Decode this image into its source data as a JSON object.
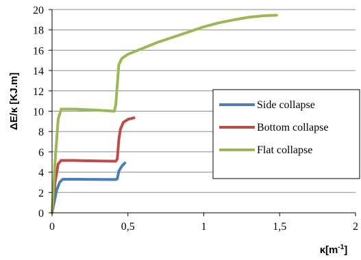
{
  "chart_data": {
    "type": "line",
    "xlabel": "κ[m",
    "xlabel_sup": "-1",
    "xlabel_end": "]",
    "ylabel": "ΔE/κ [KJ.m]",
    "xlim": [
      0,
      2
    ],
    "ylim": [
      0,
      20
    ],
    "x_ticks": [
      "0",
      "0,5",
      "1",
      "1,5",
      "2"
    ],
    "y_ticks": [
      "0",
      "2",
      "4",
      "6",
      "8",
      "10",
      "12",
      "14",
      "16",
      "18",
      "20"
    ],
    "grid": "horizontal",
    "legend_position": "right",
    "series": [
      {
        "name": "Side collapse",
        "color": "#4a7ebb",
        "points": [
          [
            0,
            0
          ],
          [
            0.03,
            2.2
          ],
          [
            0.05,
            3.0
          ],
          [
            0.07,
            3.3
          ],
          [
            0.15,
            3.3
          ],
          [
            0.3,
            3.28
          ],
          [
            0.42,
            3.27
          ],
          [
            0.43,
            3.35
          ],
          [
            0.44,
            4.1
          ],
          [
            0.46,
            4.6
          ],
          [
            0.48,
            4.9
          ]
        ]
      },
      {
        "name": "Bottom collapse",
        "color": "#be4b48",
        "points": [
          [
            0,
            0
          ],
          [
            0.02,
            3.0
          ],
          [
            0.04,
            4.8
          ],
          [
            0.06,
            5.15
          ],
          [
            0.15,
            5.15
          ],
          [
            0.3,
            5.1
          ],
          [
            0.42,
            5.08
          ],
          [
            0.43,
            5.3
          ],
          [
            0.44,
            7.2
          ],
          [
            0.45,
            8.2
          ],
          [
            0.47,
            8.9
          ],
          [
            0.5,
            9.2
          ],
          [
            0.54,
            9.35
          ]
        ]
      },
      {
        "name": "Flat collapse",
        "color": "#98b954",
        "points": [
          [
            0,
            0
          ],
          [
            0.02,
            5.0
          ],
          [
            0.04,
            9.2
          ],
          [
            0.06,
            10.2
          ],
          [
            0.15,
            10.2
          ],
          [
            0.3,
            10.1
          ],
          [
            0.41,
            10.0
          ],
          [
            0.42,
            10.6
          ],
          [
            0.44,
            14.6
          ],
          [
            0.46,
            15.2
          ],
          [
            0.5,
            15.6
          ],
          [
            0.6,
            16.2
          ],
          [
            0.7,
            16.8
          ],
          [
            0.8,
            17.3
          ],
          [
            0.9,
            17.8
          ],
          [
            1.0,
            18.3
          ],
          [
            1.1,
            18.7
          ],
          [
            1.2,
            19.0
          ],
          [
            1.3,
            19.25
          ],
          [
            1.4,
            19.4
          ],
          [
            1.48,
            19.45
          ]
        ]
      }
    ]
  }
}
